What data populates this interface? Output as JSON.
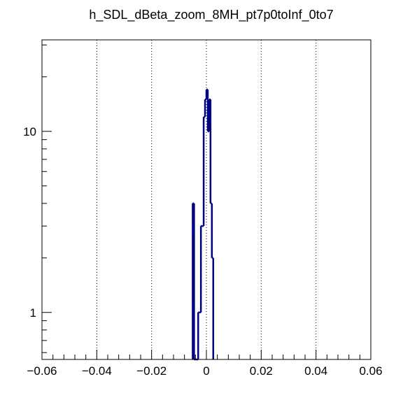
{
  "chart_data": {
    "type": "line",
    "style": "step-histogram",
    "title": "h_SDL_dBeta_zoom_8MH_pt7p0toInf_0to7",
    "xlabel": "",
    "ylabel": "",
    "xlim": [
      -0.06,
      0.06
    ],
    "ylim": [
      0.55,
      32
    ],
    "y_scale": "log",
    "grid": {
      "x": true,
      "y": false,
      "style": "dotted"
    },
    "x_ticks": [
      -0.06,
      -0.04,
      -0.02,
      0,
      0.02,
      0.04,
      0.06
    ],
    "x_tick_labels": [
      "−0.06",
      "−0.04",
      "−0.02",
      "0",
      "0.02",
      "0.04",
      "0.06"
    ],
    "y_ticks": [
      1,
      10
    ],
    "y_tick_labels": [
      "1",
      "10"
    ],
    "line_color": "#000080",
    "series": [
      {
        "bins": [
          {
            "x0": -0.005,
            "x1": -0.0045,
            "y": 4
          },
          {
            "x0": -0.0045,
            "x1": -0.004,
            "y": 0
          },
          {
            "x0": -0.004,
            "x1": -0.0035,
            "y": 0
          },
          {
            "x0": -0.0035,
            "x1": -0.003,
            "y": 0
          },
          {
            "x0": -0.003,
            "x1": -0.0025,
            "y": 1
          },
          {
            "x0": -0.0025,
            "x1": -0.002,
            "y": 1
          },
          {
            "x0": -0.002,
            "x1": -0.0015,
            "y": 3
          },
          {
            "x0": -0.0015,
            "x1": -0.001,
            "y": 3
          },
          {
            "x0": -0.001,
            "x1": -0.0005,
            "y": 12
          },
          {
            "x0": -0.0005,
            "x1": 0.0,
            "y": 15
          },
          {
            "x0": 0.0,
            "x1": 0.0005,
            "y": 17
          },
          {
            "x0": 0.0005,
            "x1": 0.001,
            "y": 10
          },
          {
            "x0": 0.001,
            "x1": 0.0015,
            "y": 15
          },
          {
            "x0": 0.0015,
            "x1": 0.002,
            "y": 4
          },
          {
            "x0": 0.002,
            "x1": 0.0025,
            "y": 2
          }
        ]
      }
    ]
  }
}
